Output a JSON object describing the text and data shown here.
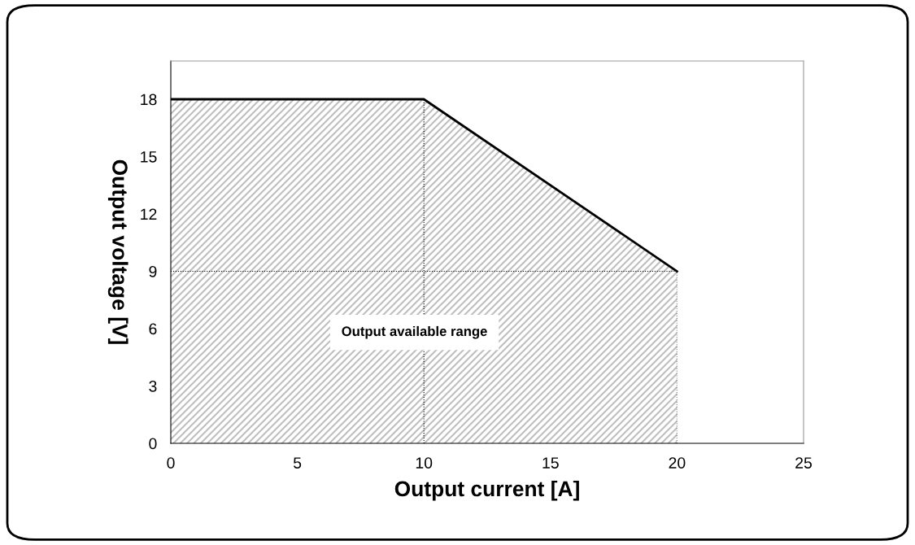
{
  "chart_data": {
    "type": "area",
    "xlabel": "Output current [A]",
    "ylabel": "Output voltage [V]",
    "x": [
      0,
      10,
      20
    ],
    "series": [
      {
        "color": "#000000",
        "values": [
          18,
          18,
          9
        ]
      }
    ],
    "xlim": [
      0,
      25
    ],
    "xticks": [
      0,
      5,
      10,
      15,
      20,
      25
    ],
    "ylim": [
      0,
      20
    ],
    "yticks": [
      0,
      3,
      6,
      9,
      12,
      15,
      18
    ],
    "ref_lines": [
      {
        "axis": "x",
        "value": 10,
        "line_style": "dotted",
        "color": "#000000"
      },
      {
        "axis": "x",
        "value": 20,
        "line_style": "dotted",
        "color": "#000000"
      },
      {
        "axis": "y",
        "value": 9,
        "line_style": "dotted",
        "color": "#000000"
      }
    ],
    "annotations": [
      "Output available range"
    ],
    "grid": false,
    "legend": false
  }
}
